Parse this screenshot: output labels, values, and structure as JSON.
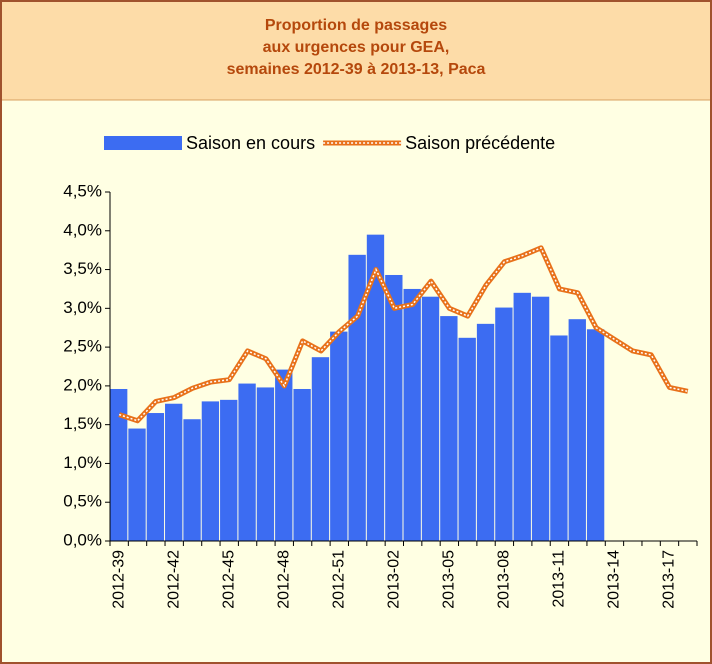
{
  "chart_data": {
    "type": "bar",
    "title": [
      "Proportion de passages",
      "aux urgences pour GEA,",
      "semaines 2012-39 à 2013-13, Paca"
    ],
    "categories": [
      "2012-39",
      null,
      null,
      "2012-42",
      null,
      null,
      "2012-45",
      null,
      null,
      "2012-48",
      null,
      null,
      "2012-51",
      null,
      null,
      "2013-02",
      null,
      null,
      "2013-05",
      null,
      null,
      "2013-08",
      null,
      null,
      "2013-11",
      null,
      null,
      "2013-14",
      null,
      null,
      "2013-17",
      null
    ],
    "series": [
      {
        "name": "Saison en cours",
        "type": "bar",
        "color": "#3c6cf2",
        "values": [
          1.96,
          1.45,
          1.65,
          1.77,
          1.57,
          1.8,
          1.82,
          2.03,
          1.98,
          2.21,
          1.96,
          2.37,
          2.7,
          3.69,
          3.95,
          3.43,
          3.25,
          3.15,
          2.9,
          2.62,
          2.8,
          3.01,
          3.2,
          3.15,
          2.65,
          2.86,
          2.73,
          null,
          null,
          null,
          null,
          null
        ]
      },
      {
        "name": "Saison précédente",
        "type": "line",
        "color": "#e8711a",
        "values": [
          1.63,
          1.55,
          1.8,
          1.85,
          1.97,
          2.05,
          2.08,
          2.45,
          2.35,
          2.0,
          2.58,
          2.45,
          2.7,
          2.9,
          3.5,
          3.0,
          3.05,
          3.35,
          3.0,
          2.9,
          3.3,
          3.6,
          3.68,
          3.78,
          3.25,
          3.2,
          2.75,
          2.6,
          2.45,
          2.4,
          1.98,
          1.93
        ]
      }
    ],
    "ylim": [
      0,
      4.5
    ],
    "yticks": [
      {
        "value": 0,
        "label": "0,0%"
      },
      {
        "value": 0.5,
        "label": "0,5%"
      },
      {
        "value": 1,
        "label": "1,0%"
      },
      {
        "value": 1.5,
        "label": "1,5%"
      },
      {
        "value": 2,
        "label": "2,0%"
      },
      {
        "value": 2.5,
        "label": "2,5%"
      },
      {
        "value": 3,
        "label": "3,0%"
      },
      {
        "value": 3.5,
        "label": "3,5%"
      },
      {
        "value": 4,
        "label": "4,0%"
      },
      {
        "value": 4.5,
        "label": "4,5%"
      }
    ],
    "grid": false,
    "legend": "top"
  }
}
